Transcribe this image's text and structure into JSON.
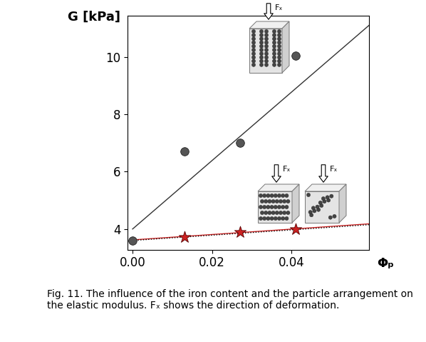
{
  "chart_data": {
    "type": "scatter",
    "caption": "Fig. 11. The influence of the iron content and the particle arrangement on the elastic modulus. Fₓ shows the direction of deformation.",
    "x_label": "Φₚ",
    "y_label": "G [kPa]",
    "annotations": [
      "Fₓ",
      "Fₓ",
      "Fₓ"
    ],
    "xlim": [
      -0.0012,
      0.0595
    ],
    "xticks": [
      {
        "value": 0,
        "label": "0.00"
      },
      {
        "value": 0.02,
        "label": "0.02"
      },
      {
        "value": 0.04,
        "label": "0.04"
      }
    ],
    "ylim": [
      3.28,
      11.45
    ],
    "yticks": [
      4,
      6,
      8,
      10
    ],
    "series": [
      {
        "type": "scatter",
        "color": "#555555",
        "marker": "o",
        "x": [
          0,
          0.013,
          0.027,
          0.041
        ],
        "values": [
          3.6,
          6.7,
          7.0,
          10.05
        ]
      },
      {
        "type": "scatter",
        "color": "#cc2222",
        "marker": "*",
        "x": [
          0.013,
          0.027,
          0.041
        ],
        "values": [
          3.72,
          3.9,
          4.0
        ]
      },
      {
        "type": "line",
        "color": "#333333",
        "line_style": "solid",
        "x": [
          0,
          0.0595
        ],
        "values": [
          4.0,
          11.1
        ]
      },
      {
        "type": "line",
        "color": "#cc2222",
        "line_style": "solid",
        "x": [
          0,
          0.0595
        ],
        "values": [
          3.62,
          4.18
        ]
      },
      {
        "type": "line",
        "color": "#000000",
        "line_style": "dotted",
        "x": [
          0,
          0.0595
        ],
        "values": [
          3.6,
          4.15
        ]
      }
    ]
  }
}
